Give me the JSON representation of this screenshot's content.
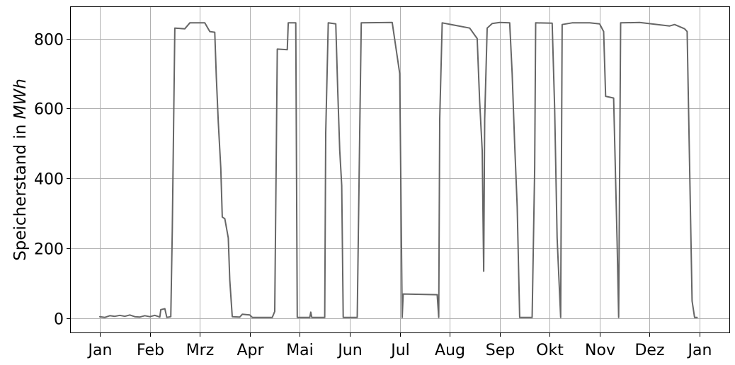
{
  "chart_data": {
    "type": "line",
    "title": "",
    "ylabel_prefix": "Speicherstand in ",
    "ylabel_unit": "MWh",
    "xlabel": "",
    "grid": true,
    "legend": "none",
    "x_range": [
      0,
      12
    ],
    "ylim": [
      -40,
      890
    ],
    "x_ticks": [
      {
        "pos": 0,
        "label": "Jan"
      },
      {
        "pos": 1,
        "label": "Feb"
      },
      {
        "pos": 2,
        "label": "Mrz"
      },
      {
        "pos": 3,
        "label": "Apr"
      },
      {
        "pos": 4,
        "label": "Mai"
      },
      {
        "pos": 5,
        "label": "Jun"
      },
      {
        "pos": 6,
        "label": "Jul"
      },
      {
        "pos": 7,
        "label": "Aug"
      },
      {
        "pos": 8,
        "label": "Sep"
      },
      {
        "pos": 9,
        "label": "Okt"
      },
      {
        "pos": 10,
        "label": "Nov"
      },
      {
        "pos": 11,
        "label": "Dez"
      },
      {
        "pos": 12,
        "label": "Jan"
      }
    ],
    "y_ticks": [
      0,
      200,
      400,
      600,
      800
    ],
    "series": [
      {
        "color": "#666666",
        "points": [
          [
            0.0,
            5
          ],
          [
            0.1,
            3
          ],
          [
            0.2,
            8
          ],
          [
            0.3,
            6
          ],
          [
            0.4,
            9
          ],
          [
            0.5,
            6
          ],
          [
            0.6,
            10
          ],
          [
            0.7,
            5
          ],
          [
            0.8,
            4
          ],
          [
            0.9,
            8
          ],
          [
            1.0,
            5
          ],
          [
            1.1,
            9
          ],
          [
            1.2,
            4
          ],
          [
            1.22,
            25
          ],
          [
            1.3,
            28
          ],
          [
            1.34,
            3
          ],
          [
            1.42,
            5
          ],
          [
            1.45,
            250
          ],
          [
            1.5,
            830
          ],
          [
            1.7,
            828
          ],
          [
            1.8,
            845
          ],
          [
            2.1,
            845
          ],
          [
            2.2,
            820
          ],
          [
            2.3,
            818
          ],
          [
            2.33,
            690
          ],
          [
            2.37,
            560
          ],
          [
            2.42,
            430
          ],
          [
            2.45,
            290
          ],
          [
            2.5,
            285
          ],
          [
            2.57,
            230
          ],
          [
            2.6,
            110
          ],
          [
            2.65,
            5
          ],
          [
            2.8,
            4
          ],
          [
            2.85,
            12
          ],
          [
            3.0,
            10
          ],
          [
            3.05,
            3
          ],
          [
            3.45,
            3
          ],
          [
            3.5,
            20
          ],
          [
            3.55,
            770
          ],
          [
            3.75,
            768
          ],
          [
            3.77,
            845
          ],
          [
            3.92,
            845
          ],
          [
            3.95,
            3
          ],
          [
            4.2,
            3
          ],
          [
            4.22,
            18
          ],
          [
            4.24,
            3
          ],
          [
            4.5,
            3
          ],
          [
            4.52,
            530
          ],
          [
            4.57,
            845
          ],
          [
            4.72,
            842
          ],
          [
            4.76,
            650
          ],
          [
            4.8,
            480
          ],
          [
            4.84,
            380
          ],
          [
            4.87,
            3
          ],
          [
            5.15,
            3
          ],
          [
            5.2,
            530
          ],
          [
            5.23,
            845
          ],
          [
            5.85,
            846
          ],
          [
            6.0,
            700
          ],
          [
            6.05,
            3
          ],
          [
            6.07,
            70
          ],
          [
            6.75,
            68
          ],
          [
            6.78,
            3
          ],
          [
            6.8,
            570
          ],
          [
            6.85,
            845
          ],
          [
            7.4,
            830
          ],
          [
            7.55,
            800
          ],
          [
            7.6,
            620
          ],
          [
            7.65,
            480
          ],
          [
            7.68,
            135
          ],
          [
            7.7,
            570
          ],
          [
            7.75,
            830
          ],
          [
            7.85,
            843
          ],
          [
            8.0,
            846
          ],
          [
            8.2,
            845
          ],
          [
            8.25,
            700
          ],
          [
            8.3,
            500
          ],
          [
            8.35,
            320
          ],
          [
            8.4,
            3
          ],
          [
            8.65,
            3
          ],
          [
            8.7,
            430
          ],
          [
            8.72,
            845
          ],
          [
            9.05,
            844
          ],
          [
            9.1,
            600
          ],
          [
            9.15,
            230
          ],
          [
            9.22,
            3
          ],
          [
            9.25,
            840
          ],
          [
            9.45,
            845
          ],
          [
            9.65,
            845
          ],
          [
            9.8,
            845
          ],
          [
            10.0,
            842
          ],
          [
            10.08,
            820
          ],
          [
            10.12,
            635
          ],
          [
            10.28,
            630
          ],
          [
            10.35,
            220
          ],
          [
            10.38,
            3
          ],
          [
            10.42,
            845
          ],
          [
            10.8,
            846
          ],
          [
            11.4,
            836
          ],
          [
            11.5,
            840
          ],
          [
            11.7,
            828
          ],
          [
            11.75,
            820
          ],
          [
            11.85,
            50
          ],
          [
            11.9,
            3
          ],
          [
            11.95,
            3
          ]
        ]
      }
    ]
  }
}
